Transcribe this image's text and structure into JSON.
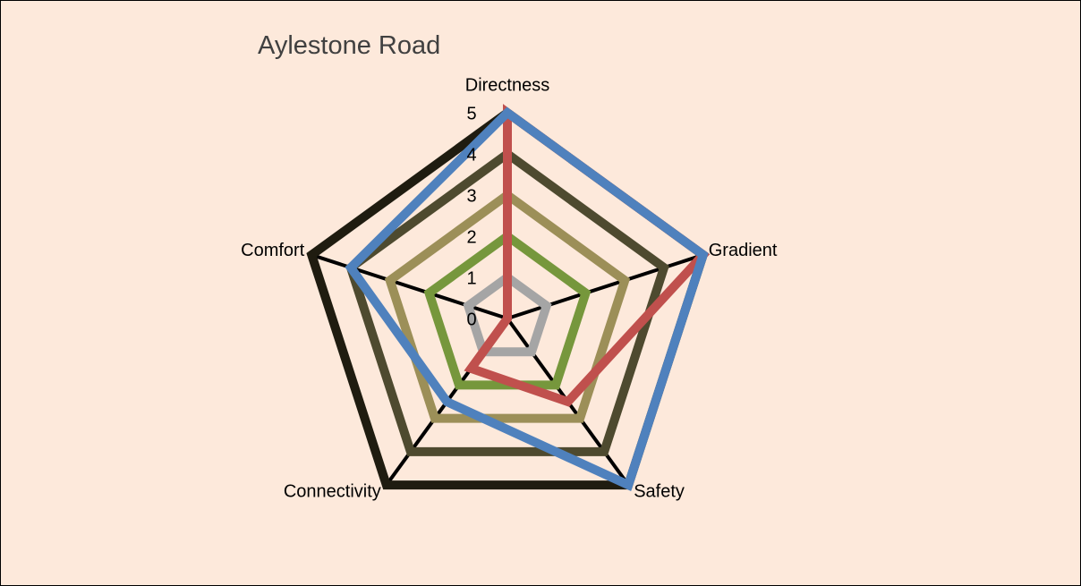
{
  "chart_data": {
    "type": "radar",
    "title": "Aylestone Road",
    "categories": [
      "Directness",
      "Gradient",
      "Safety",
      "Connectivity",
      "Comfort"
    ],
    "ylim": [
      0,
      5
    ],
    "yticks": [
      0,
      1,
      2,
      3,
      4,
      5
    ],
    "series": [
      {
        "color": "#a5a5a5",
        "values": [
          1,
          1,
          1,
          1,
          1
        ]
      },
      {
        "color": "#76973c",
        "values": [
          2,
          2,
          2,
          2,
          2
        ]
      },
      {
        "color": "#9c8f58",
        "values": [
          3,
          3,
          3,
          3,
          3
        ]
      },
      {
        "color": "#4e4a2f",
        "values": [
          4,
          4,
          4,
          4,
          4
        ]
      },
      {
        "color": "#1f1c10",
        "values": [
          5,
          5,
          5,
          5,
          5
        ]
      },
      {
        "color": "#c0504d",
        "values": [
          5,
          5,
          2.5,
          1.5,
          0
        ]
      },
      {
        "color": "#4f81bd",
        "values": [
          5,
          5,
          5,
          2.5,
          4
        ]
      }
    ]
  }
}
